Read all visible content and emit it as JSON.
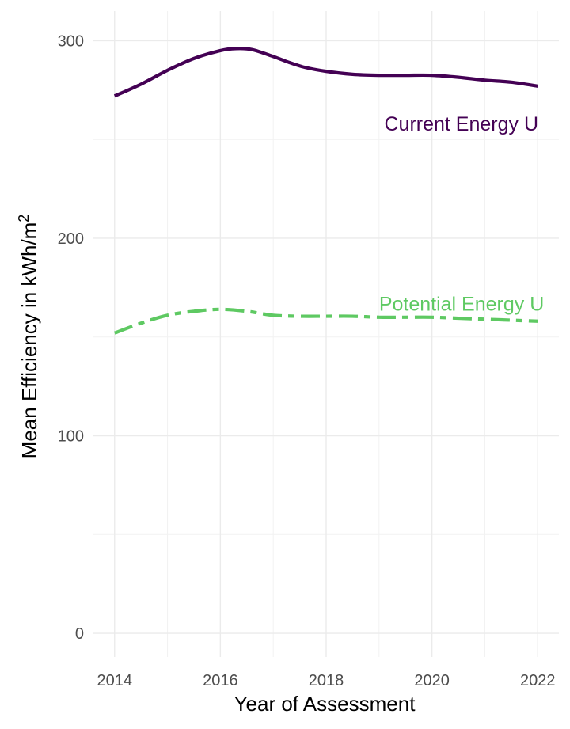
{
  "chart_data": {
    "type": "line",
    "title": "",
    "xlabel": "Year of Assessment",
    "ylabel": "Mean Efficiency in kWh/m²",
    "ylabel_parts": {
      "text": "Mean Efficiency in kWh/m",
      "superscript": "2"
    },
    "xlim": [
      2013.6,
      2022.4
    ],
    "ylim": [
      -12,
      315
    ],
    "x_ticks": [
      2014,
      2016,
      2018,
      2020,
      2022
    ],
    "y_ticks": [
      0,
      100,
      200,
      300
    ],
    "x_tick_labels": [
      "2014",
      "2016",
      "2018",
      "2020",
      "2022"
    ],
    "y_tick_labels": [
      "0",
      "100",
      "200",
      "300"
    ],
    "grid": true,
    "legend": "none",
    "series": [
      {
        "name": "Current Energy Use",
        "label_text": "Current Energy U",
        "color": "#440154",
        "line_style": "solid",
        "label_at": [
          2019.1,
          258
        ],
        "x": [
          2014,
          2014.5,
          2015,
          2015.5,
          2016,
          2016.3,
          2016.6,
          2017,
          2017.3,
          2017.6,
          2018,
          2018.5,
          2019,
          2019.5,
          2020,
          2020.5,
          2021,
          2021.5,
          2022
        ],
        "values": [
          272,
          278,
          285,
          291,
          295,
          296,
          295.5,
          292,
          289,
          286.5,
          284.5,
          283,
          282.5,
          282.5,
          282.5,
          281.5,
          280,
          279,
          277
        ]
      },
      {
        "name": "Potential Energy Use",
        "label_text": "Potential Energy U",
        "color": "#5ec962",
        "line_style": "dashdot",
        "label_at": [
          2019.0,
          167
        ],
        "x": [
          2014,
          2014.5,
          2015,
          2015.5,
          2016,
          2016.5,
          2017,
          2017.5,
          2018,
          2018.5,
          2019,
          2019.5,
          2020,
          2020.5,
          2021,
          2021.5,
          2022
        ],
        "values": [
          152,
          157,
          161,
          163,
          164,
          163,
          161,
          160.5,
          160.5,
          160.5,
          160,
          160,
          160,
          159.5,
          159,
          158.5,
          158
        ]
      }
    ]
  }
}
